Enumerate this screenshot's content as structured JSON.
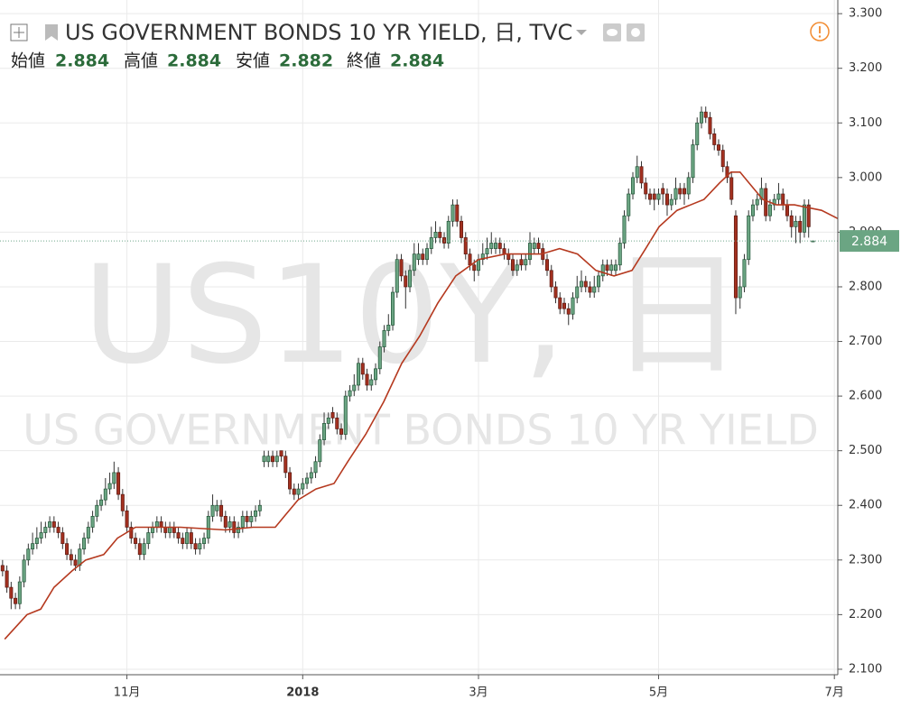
{
  "chart_data": {
    "type": "candlestick",
    "title": "US GOVERNMENT BONDS 10 YR YIELD, 日, TVC",
    "watermark_symbol": "US10Y, 日",
    "watermark_name": "US GOVERNMENT BONDS 10 YR YIELD",
    "ohlc_labels": [
      "始値",
      "高値",
      "安値",
      "終値"
    ],
    "up_color": "#6ba583",
    "down_color": "#a3301f",
    "up_border": "#225437",
    "down_border": "#5b1a13",
    "grid": true,
    "ylim": [
      2.09,
      3.325
    ],
    "yticks": [
      {
        "value": 2.1,
        "label": "2.100"
      },
      {
        "value": 2.2,
        "label": "2.200"
      },
      {
        "value": 2.3,
        "label": "2.300"
      },
      {
        "value": 2.4,
        "label": "2.400"
      },
      {
        "value": 2.5,
        "label": "2.500"
      },
      {
        "value": 2.6,
        "label": "2.600"
      },
      {
        "value": 2.7,
        "label": "2.700"
      },
      {
        "value": 2.8,
        "label": "2.800"
      },
      {
        "value": 2.9,
        "label": "2.900"
      },
      {
        "value": 3.0,
        "label": "3.000"
      },
      {
        "value": 3.1,
        "label": "3.100"
      },
      {
        "value": 3.2,
        "label": "3.200"
      },
      {
        "value": 3.3,
        "label": "3.300"
      }
    ],
    "xlim": [
      -0.6,
      194.8
    ],
    "xticks": [
      {
        "value": 29,
        "label": "11月"
      },
      {
        "value": 70,
        "label": "2018"
      },
      {
        "value": 111,
        "label": "3月"
      },
      {
        "value": 153,
        "label": "5月"
      },
      {
        "value": 194,
        "label": "7月"
      }
    ],
    "ohlc": [
      [
        2.29,
        2.3,
        2.27,
        2.28
      ],
      [
        2.28,
        2.29,
        2.24,
        2.25
      ],
      [
        2.25,
        2.26,
        2.21,
        2.23
      ],
      [
        2.23,
        2.24,
        2.21,
        2.22
      ],
      [
        2.22,
        2.27,
        2.21,
        2.26
      ],
      [
        2.26,
        2.31,
        2.25,
        2.3
      ],
      [
        2.3,
        2.33,
        2.29,
        2.32
      ],
      [
        2.32,
        2.35,
        2.31,
        2.33
      ],
      [
        2.33,
        2.36,
        2.32,
        2.34
      ],
      [
        2.34,
        2.37,
        2.33,
        2.35
      ],
      [
        2.35,
        2.37,
        2.34,
        2.36
      ],
      [
        2.36,
        2.38,
        2.35,
        2.37
      ],
      [
        2.37,
        2.38,
        2.35,
        2.36
      ],
      [
        2.36,
        2.37,
        2.34,
        2.35
      ],
      [
        2.35,
        2.36,
        2.32,
        2.33
      ],
      [
        2.33,
        2.34,
        2.3,
        2.31
      ],
      [
        2.31,
        2.32,
        2.29,
        2.3
      ],
      [
        2.3,
        2.31,
        2.28,
        2.29
      ],
      [
        2.29,
        2.33,
        2.28,
        2.32
      ],
      [
        2.32,
        2.35,
        2.31,
        2.34
      ],
      [
        2.34,
        2.37,
        2.33,
        2.36
      ],
      [
        2.36,
        2.39,
        2.35,
        2.38
      ],
      [
        2.38,
        2.41,
        2.37,
        2.4
      ],
      [
        2.4,
        2.42,
        2.39,
        2.41
      ],
      [
        2.41,
        2.45,
        2.4,
        2.43
      ],
      [
        2.43,
        2.46,
        2.42,
        2.44
      ],
      [
        2.44,
        2.48,
        2.43,
        2.46
      ],
      [
        2.46,
        2.47,
        2.41,
        2.42
      ],
      [
        2.42,
        2.43,
        2.38,
        2.39
      ],
      [
        2.39,
        2.4,
        2.35,
        2.36
      ],
      [
        2.36,
        2.37,
        2.33,
        2.34
      ],
      [
        2.34,
        2.35,
        2.32,
        2.33
      ],
      [
        2.33,
        2.34,
        2.3,
        2.31
      ],
      [
        2.31,
        2.34,
        2.3,
        2.33
      ],
      [
        2.33,
        2.36,
        2.32,
        2.35
      ],
      [
        2.35,
        2.37,
        2.34,
        2.36
      ],
      [
        2.36,
        2.38,
        2.35,
        2.37
      ],
      [
        2.37,
        2.38,
        2.35,
        2.36
      ],
      [
        2.36,
        2.37,
        2.34,
        2.35
      ],
      [
        2.35,
        2.37,
        2.34,
        2.36
      ],
      [
        2.36,
        2.37,
        2.34,
        2.35
      ],
      [
        2.35,
        2.36,
        2.33,
        2.34
      ],
      [
        2.34,
        2.35,
        2.32,
        2.33
      ],
      [
        2.33,
        2.36,
        2.32,
        2.35
      ],
      [
        2.35,
        2.36,
        2.32,
        2.33
      ],
      [
        2.33,
        2.34,
        2.31,
        2.32
      ],
      [
        2.32,
        2.34,
        2.31,
        2.33
      ],
      [
        2.33,
        2.35,
        2.32,
        2.34
      ],
      [
        2.34,
        2.39,
        2.33,
        2.38
      ],
      [
        2.38,
        2.42,
        2.37,
        2.4
      ],
      [
        2.39,
        2.41,
        2.38,
        2.4
      ],
      [
        2.4,
        2.41,
        2.37,
        2.38
      ],
      [
        2.38,
        2.39,
        2.35,
        2.36
      ],
      [
        2.36,
        2.38,
        2.35,
        2.37
      ],
      [
        2.37,
        2.38,
        2.34,
        2.35
      ],
      [
        2.35,
        2.37,
        2.34,
        2.36
      ],
      [
        2.36,
        2.39,
        2.35,
        2.38
      ],
      [
        2.38,
        2.39,
        2.36,
        2.37
      ],
      [
        2.37,
        2.39,
        2.36,
        2.38
      ],
      [
        2.38,
        2.4,
        2.37,
        2.39
      ],
      [
        2.39,
        2.41,
        2.38,
        2.4
      ],
      [
        2.48,
        2.5,
        2.47,
        2.49
      ],
      [
        2.48,
        2.5,
        2.47,
        2.49
      ],
      [
        2.49,
        2.5,
        2.47,
        2.48
      ],
      [
        2.48,
        2.5,
        2.47,
        2.49
      ],
      [
        2.5,
        2.5,
        2.48,
        2.49
      ],
      [
        2.49,
        2.5,
        2.45,
        2.46
      ],
      [
        2.46,
        2.47,
        2.42,
        2.43
      ],
      [
        2.43,
        2.44,
        2.41,
        2.42
      ],
      [
        2.42,
        2.44,
        2.41,
        2.43
      ],
      [
        2.43,
        2.45,
        2.42,
        2.44
      ],
      [
        2.44,
        2.46,
        2.43,
        2.45
      ],
      [
        2.45,
        2.47,
        2.44,
        2.46
      ],
      [
        2.46,
        2.49,
        2.45,
        2.48
      ],
      [
        2.48,
        2.53,
        2.47,
        2.52
      ],
      [
        2.52,
        2.57,
        2.51,
        2.55
      ],
      [
        2.55,
        2.57,
        2.54,
        2.56
      ],
      [
        2.57,
        2.58,
        2.55,
        2.56
      ],
      [
        2.56,
        2.57,
        2.53,
        2.54
      ],
      [
        2.54,
        2.55,
        2.52,
        2.53
      ],
      [
        2.53,
        2.61,
        2.52,
        2.6
      ],
      [
        2.6,
        2.62,
        2.59,
        2.61
      ],
      [
        2.61,
        2.64,
        2.6,
        2.62
      ],
      [
        2.62,
        2.67,
        2.61,
        2.66
      ],
      [
        2.66,
        2.67,
        2.63,
        2.64
      ],
      [
        2.64,
        2.65,
        2.61,
        2.62
      ],
      [
        2.62,
        2.64,
        2.61,
        2.63
      ],
      [
        2.63,
        2.66,
        2.62,
        2.65
      ],
      [
        2.65,
        2.7,
        2.64,
        2.69
      ],
      [
        2.69,
        2.73,
        2.68,
        2.72
      ],
      [
        2.72,
        2.75,
        2.71,
        2.73
      ],
      [
        2.73,
        2.8,
        2.72,
        2.79
      ],
      [
        2.79,
        2.86,
        2.78,
        2.85
      ],
      [
        2.85,
        2.86,
        2.81,
        2.82
      ],
      [
        2.82,
        2.83,
        2.76,
        2.8
      ],
      [
        2.8,
        2.84,
        2.79,
        2.83
      ],
      [
        2.83,
        2.88,
        2.82,
        2.86
      ],
      [
        2.85,
        2.88,
        2.84,
        2.86
      ],
      [
        2.86,
        2.87,
        2.84,
        2.85
      ],
      [
        2.85,
        2.88,
        2.84,
        2.87
      ],
      [
        2.87,
        2.91,
        2.86,
        2.89
      ],
      [
        2.89,
        2.92,
        2.88,
        2.9
      ],
      [
        2.9,
        2.91,
        2.88,
        2.89
      ],
      [
        2.89,
        2.9,
        2.87,
        2.88
      ],
      [
        2.88,
        2.93,
        2.87,
        2.92
      ],
      [
        2.92,
        2.96,
        2.91,
        2.95
      ],
      [
        2.95,
        2.96,
        2.91,
        2.92
      ],
      [
        2.92,
        2.93,
        2.88,
        2.89
      ],
      [
        2.89,
        2.9,
        2.85,
        2.86
      ],
      [
        2.86,
        2.87,
        2.83,
        2.84
      ],
      [
        2.84,
        2.85,
        2.81,
        2.83
      ],
      [
        2.83,
        2.86,
        2.82,
        2.85
      ],
      [
        2.85,
        2.88,
        2.84,
        2.86
      ],
      [
        2.86,
        2.89,
        2.85,
        2.87
      ],
      [
        2.87,
        2.9,
        2.86,
        2.88
      ],
      [
        2.87,
        2.89,
        2.86,
        2.88
      ],
      [
        2.88,
        2.89,
        2.86,
        2.87
      ],
      [
        2.87,
        2.88,
        2.85,
        2.86
      ],
      [
        2.86,
        2.87,
        2.84,
        2.85
      ],
      [
        2.85,
        2.86,
        2.82,
        2.83
      ],
      [
        2.83,
        2.85,
        2.82,
        2.84
      ],
      [
        2.85,
        2.86,
        2.83,
        2.84
      ],
      [
        2.84,
        2.86,
        2.83,
        2.85
      ],
      [
        2.85,
        2.9,
        2.84,
        2.88
      ],
      [
        2.87,
        2.89,
        2.86,
        2.88
      ],
      [
        2.88,
        2.89,
        2.86,
        2.87
      ],
      [
        2.87,
        2.88,
        2.84,
        2.85
      ],
      [
        2.85,
        2.86,
        2.82,
        2.83
      ],
      [
        2.83,
        2.84,
        2.79,
        2.8
      ],
      [
        2.8,
        2.81,
        2.77,
        2.78
      ],
      [
        2.78,
        2.79,
        2.75,
        2.76
      ],
      [
        2.77,
        2.78,
        2.75,
        2.76
      ],
      [
        2.76,
        2.77,
        2.73,
        2.75
      ],
      [
        2.75,
        2.79,
        2.74,
        2.78
      ],
      [
        2.78,
        2.82,
        2.77,
        2.8
      ],
      [
        2.8,
        2.83,
        2.79,
        2.81
      ],
      [
        2.81,
        2.82,
        2.79,
        2.8
      ],
      [
        2.8,
        2.81,
        2.78,
        2.79
      ],
      [
        2.79,
        2.82,
        2.78,
        2.8
      ],
      [
        2.8,
        2.83,
        2.79,
        2.82
      ],
      [
        2.82,
        2.85,
        2.81,
        2.84
      ],
      [
        2.84,
        2.85,
        2.82,
        2.83
      ],
      [
        2.83,
        2.85,
        2.82,
        2.84
      ],
      [
        2.83,
        2.85,
        2.82,
        2.84
      ],
      [
        2.84,
        2.89,
        2.83,
        2.88
      ],
      [
        2.88,
        2.94,
        2.87,
        2.93
      ],
      [
        2.93,
        2.98,
        2.92,
        2.97
      ],
      [
        2.97,
        3.01,
        2.96,
        3.0
      ],
      [
        3.0,
        3.04,
        2.99,
        3.02
      ],
      [
        3.02,
        3.03,
        2.98,
        2.99
      ],
      [
        2.99,
        3.0,
        2.96,
        2.97
      ],
      [
        2.97,
        2.98,
        2.95,
        2.96
      ],
      [
        2.97,
        2.98,
        2.94,
        2.96
      ],
      [
        2.96,
        2.98,
        2.95,
        2.97
      ],
      [
        2.98,
        2.99,
        2.95,
        2.97
      ],
      [
        2.97,
        2.98,
        2.93,
        2.95
      ],
      [
        2.95,
        2.97,
        2.94,
        2.96
      ],
      [
        2.96,
        3.0,
        2.95,
        2.98
      ],
      [
        2.98,
        2.99,
        2.96,
        2.97
      ],
      [
        2.98,
        2.99,
        2.95,
        2.97
      ],
      [
        2.97,
        3.01,
        2.96,
        3.0
      ],
      [
        3.0,
        3.07,
        2.99,
        3.06
      ],
      [
        3.06,
        3.11,
        3.05,
        3.1
      ],
      [
        3.1,
        3.13,
        3.09,
        3.12
      ],
      [
        3.12,
        3.13,
        3.1,
        3.11
      ],
      [
        3.11,
        3.12,
        3.07,
        3.08
      ],
      [
        3.08,
        3.09,
        3.05,
        3.06
      ],
      [
        3.06,
        3.07,
        3.04,
        3.05
      ],
      [
        3.05,
        3.06,
        3.01,
        3.02
      ],
      [
        3.02,
        3.03,
        2.99,
        3.0
      ],
      [
        3.0,
        3.01,
        2.95,
        2.96
      ],
      [
        2.93,
        2.94,
        2.75,
        2.78
      ],
      [
        2.78,
        2.82,
        2.76,
        2.8
      ],
      [
        2.8,
        2.86,
        2.79,
        2.85
      ],
      [
        2.85,
        2.94,
        2.84,
        2.93
      ],
      [
        2.93,
        2.96,
        2.92,
        2.95
      ],
      [
        2.95,
        2.97,
        2.94,
        2.96
      ],
      [
        2.96,
        3.0,
        2.95,
        2.98
      ],
      [
        2.98,
        2.99,
        2.92,
        2.93
      ],
      [
        2.93,
        2.96,
        2.92,
        2.95
      ],
      [
        2.95,
        2.97,
        2.94,
        2.96
      ],
      [
        2.96,
        2.99,
        2.95,
        2.97
      ],
      [
        2.97,
        2.98,
        2.94,
        2.95
      ],
      [
        2.95,
        2.96,
        2.92,
        2.93
      ],
      [
        2.93,
        2.94,
        2.89,
        2.91
      ],
      [
        2.91,
        2.93,
        2.88,
        2.92
      ],
      [
        2.92,
        2.93,
        2.88,
        2.9
      ],
      [
        2.9,
        2.96,
        2.89,
        2.95
      ],
      [
        2.95,
        2.96,
        2.89,
        2.91
      ],
      [
        2.884,
        2.884,
        2.882,
        2.884
      ]
    ],
    "ma": {
      "color": "#b5391f",
      "x": [
        0.5,
        5.7,
        8.9,
        12,
        16.2,
        19.4,
        23.6,
        26.8,
        31,
        41.5,
        52,
        58.4,
        63.6,
        65.7,
        68.9,
        73.1,
        77.3,
        80.5,
        84.7,
        88.9,
        93.1,
        97.3,
        101.5,
        105.7,
        111,
        117.3,
        125.7,
        129.9,
        134.1,
        138.4,
        142.6,
        146.8,
        150,
        153.1,
        157.3,
        163.6,
        167.2,
        169.9,
        172,
        174.1,
        177.3,
        180.5,
        184.7,
        191,
        194.8
      ],
      "values": [
        2.155,
        2.2,
        2.21,
        2.25,
        2.28,
        2.3,
        2.31,
        2.34,
        2.36,
        2.36,
        2.355,
        2.36,
        2.36,
        2.38,
        2.41,
        2.43,
        2.44,
        2.48,
        2.53,
        2.59,
        2.66,
        2.71,
        2.77,
        2.82,
        2.85,
        2.86,
        2.86,
        2.87,
        2.86,
        2.83,
        2.82,
        2.83,
        2.87,
        2.91,
        2.94,
        2.96,
        2.99,
        3.01,
        3.01,
        2.99,
        2.96,
        2.95,
        2.95,
        2.94,
        2.925
      ]
    }
  }
}
